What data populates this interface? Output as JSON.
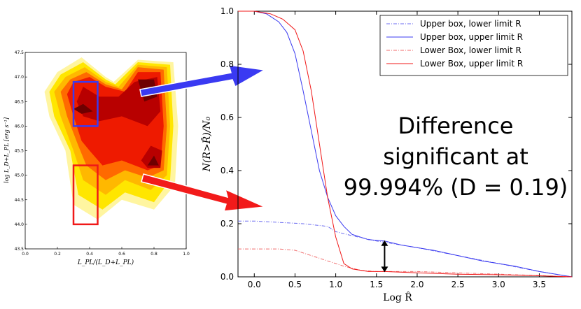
{
  "annotation": {
    "line1": "Difference",
    "line2": "significant at",
    "line3": "99.994% (D = 0.19)"
  },
  "colors": {
    "upper_box": "#3b3bf0",
    "lower_box": "#f01818",
    "arrow_blue": "#3a3af2",
    "arrow_red": "#f21a1a"
  },
  "chart_data": [
    {
      "type": "heatmap",
      "xlabel": "L_PL/(L_D+L_PL)",
      "ylabel": "log L_D+L_PL [erg s⁻¹]",
      "xlim": [
        0.0,
        1.0
      ],
      "ylim": [
        43.5,
        47.5
      ],
      "xticks": [
        "0.0",
        "0.2",
        "0.4",
        "0.6",
        "0.8",
        "1.0"
      ],
      "yticks": [
        "43.5",
        "44.0",
        "44.5",
        "45.0",
        "45.5",
        "46.0",
        "46.5",
        "47.0",
        "47.5"
      ],
      "boxes": [
        {
          "name": "Upper box",
          "x": [
            0.3,
            0.45
          ],
          "y": [
            46.0,
            46.9
          ],
          "color": "blue"
        },
        {
          "name": "Lower box",
          "x": [
            0.3,
            0.45
          ],
          "y": [
            44.0,
            45.2
          ],
          "color": "red"
        }
      ]
    },
    {
      "type": "line",
      "xlabel": "Log R̂",
      "ylabel": "N(R>R̂)/N₀",
      "xlim": [
        -0.2,
        3.9
      ],
      "ylim": [
        0.0,
        1.0
      ],
      "xticks": [
        "0.0",
        "0.5",
        "1.0",
        "1.5",
        "2.0",
        "2.5",
        "3.0",
        "3.5"
      ],
      "yticks": [
        "0.0",
        "0.2",
        "0.4",
        "0.6",
        "0.8",
        "1.0"
      ],
      "legend_position": "top-right",
      "series": [
        {
          "name": "Upper box, lower limit R",
          "style": "dashdot",
          "color": "#6b6bf0",
          "x": [
            -0.2,
            0.0,
            0.3,
            0.6,
            0.9,
            1.0,
            1.2,
            1.5,
            2.0,
            2.5,
            3.0,
            3.5,
            3.9
          ],
          "y": [
            0.21,
            0.21,
            0.205,
            0.2,
            0.19,
            0.17,
            0.155,
            0.135,
            0.11,
            0.08,
            0.05,
            0.02,
            0.0
          ]
        },
        {
          "name": "Upper box, upper limit R",
          "style": "solid",
          "color": "#3b3bf0",
          "x": [
            -0.2,
            0.0,
            0.15,
            0.3,
            0.4,
            0.5,
            0.6,
            0.7,
            0.8,
            0.9,
            1.0,
            1.1,
            1.2,
            1.4,
            1.6,
            1.8,
            2.0,
            2.2,
            2.5,
            2.8,
            3.0,
            3.2,
            3.5,
            3.9
          ],
          "y": [
            1.0,
            1.0,
            0.99,
            0.96,
            0.92,
            0.84,
            0.7,
            0.55,
            0.4,
            0.3,
            0.23,
            0.19,
            0.16,
            0.14,
            0.135,
            0.12,
            0.11,
            0.1,
            0.08,
            0.06,
            0.05,
            0.04,
            0.02,
            0.0
          ]
        },
        {
          "name": "Lower Box, lower limit R",
          "style": "dashdot",
          "color": "#f06b6b",
          "x": [
            -0.2,
            0.0,
            0.3,
            0.5,
            0.7,
            0.9,
            1.1,
            1.3,
            1.5,
            2.0,
            2.5,
            3.0,
            3.5,
            3.9
          ],
          "y": [
            0.105,
            0.105,
            0.105,
            0.1,
            0.08,
            0.06,
            0.04,
            0.025,
            0.02,
            0.02,
            0.015,
            0.01,
            0.005,
            0.0
          ]
        },
        {
          "name": "Lower Box, upper limit R",
          "style": "solid",
          "color": "#f01818",
          "x": [
            -0.2,
            0.0,
            0.2,
            0.35,
            0.5,
            0.6,
            0.7,
            0.8,
            0.9,
            1.0,
            1.1,
            1.2,
            1.4,
            1.6,
            2.0,
            2.5,
            3.0,
            3.5,
            3.9
          ],
          "y": [
            1.0,
            1.0,
            0.99,
            0.97,
            0.93,
            0.85,
            0.7,
            0.5,
            0.3,
            0.15,
            0.05,
            0.03,
            0.02,
            0.02,
            0.015,
            0.01,
            0.008,
            0.004,
            0.0
          ]
        }
      ],
      "marker": {
        "type": "double-arrow",
        "x": 1.6,
        "y": [
          0.02,
          0.135
        ]
      }
    }
  ]
}
